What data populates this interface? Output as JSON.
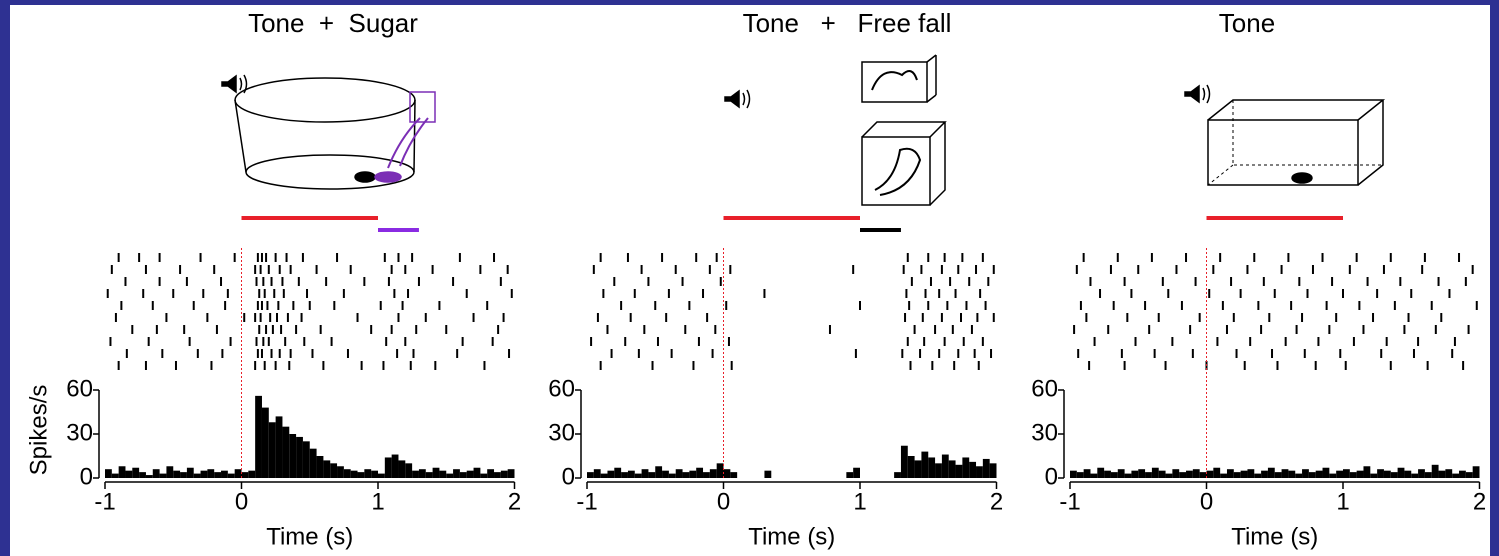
{
  "chart_data": [
    {
      "type": "histogram",
      "title": "Tone  +  Sugar",
      "xlabel": "Time (s)",
      "ylabel": "Spikes/s",
      "color": "#000000",
      "xlim": [
        -1,
        2
      ],
      "ylim": [
        0,
        60
      ],
      "xticks": [
        -1,
        0,
        1,
        2
      ],
      "yticks": [
        0,
        30,
        60
      ],
      "bins": [
        -1,
        -0.95,
        -0.9,
        -0.85,
        -0.8,
        -0.75,
        -0.7,
        -0.65,
        -0.6,
        -0.55,
        -0.5,
        -0.45,
        -0.4,
        -0.35,
        -0.3,
        -0.25,
        -0.2,
        -0.15,
        -0.1,
        -0.05,
        0,
        0.05,
        0.1,
        0.15,
        0.2,
        0.25,
        0.3,
        0.35,
        0.4,
        0.45,
        0.5,
        0.55,
        0.6,
        0.65,
        0.7,
        0.75,
        0.8,
        0.85,
        0.9,
        0.95,
        1,
        1.05,
        1.1,
        1.15,
        1.2,
        1.25,
        1.3,
        1.35,
        1.4,
        1.45,
        1.5,
        1.55,
        1.6,
        1.65,
        1.7,
        1.75,
        1.8,
        1.85,
        1.9,
        1.95,
        2
      ],
      "values": [
        6,
        3,
        8,
        5,
        7,
        4,
        2,
        6,
        3,
        8,
        5,
        4,
        7,
        3,
        5,
        6,
        4,
        5,
        3,
        6,
        4,
        5,
        56,
        48,
        38,
        42,
        35,
        30,
        28,
        25,
        20,
        15,
        12,
        10,
        8,
        6,
        5,
        4,
        6,
        5,
        3,
        14,
        16,
        12,
        10,
        5,
        6,
        4,
        7,
        5,
        3,
        6,
        4,
        5,
        7,
        3,
        6,
        4,
        5,
        6
      ],
      "event_line": {
        "x": 0,
        "color": "#e8202a"
      },
      "stimuli": [
        {
          "start": 0,
          "end": 1,
          "color": "#e8202a"
        },
        {
          "start": 1,
          "end": 1.3,
          "color": "#8a2be2"
        }
      ],
      "raster": [
        [
          -0.9,
          -0.75,
          -0.6,
          -0.3,
          -0.05,
          0.12,
          0.15,
          0.18,
          0.25,
          0.33,
          0.45,
          0.7,
          1.05,
          1.15,
          1.25,
          1.6,
          1.85
        ],
        [
          -0.95,
          -0.7,
          -0.45,
          -0.2,
          0.1,
          0.14,
          0.2,
          0.28,
          0.36,
          0.55,
          0.8,
          1.1,
          1.2,
          1.4,
          1.75,
          1.95
        ],
        [
          -0.85,
          -0.6,
          -0.4,
          -0.15,
          0.11,
          0.16,
          0.22,
          0.3,
          0.42,
          0.62,
          0.9,
          1.08,
          1.3,
          1.55,
          1.9
        ],
        [
          -0.98,
          -0.72,
          -0.5,
          -0.28,
          -0.1,
          0.13,
          0.17,
          0.24,
          0.31,
          0.48,
          0.75,
          1.12,
          1.22,
          1.65,
          1.98
        ],
        [
          -0.88,
          -0.65,
          -0.35,
          -0.12,
          0.12,
          0.15,
          0.19,
          0.27,
          0.38,
          0.5,
          0.68,
          1.02,
          1.18,
          1.45,
          1.8
        ],
        [
          -0.92,
          -0.55,
          -0.25,
          0.02,
          0.1,
          0.14,
          0.21,
          0.26,
          0.34,
          0.44,
          0.85,
          1.15,
          1.35,
          1.7,
          1.92
        ],
        [
          -0.8,
          -0.62,
          -0.42,
          -0.18,
          0.13,
          0.18,
          0.23,
          0.29,
          0.4,
          0.58,
          0.95,
          1.1,
          1.28,
          1.5,
          1.88
        ],
        [
          -0.96,
          -0.68,
          -0.38,
          -0.08,
          0.11,
          0.16,
          0.2,
          0.32,
          0.46,
          0.66,
          1.06,
          1.2,
          1.62,
          1.84
        ],
        [
          -0.84,
          -0.58,
          -0.32,
          -0.14,
          0.12,
          0.15,
          0.22,
          0.28,
          0.36,
          0.52,
          0.78,
          1.14,
          1.26,
          1.58,
          1.96
        ],
        [
          -0.9,
          -0.7,
          -0.48,
          -0.22,
          0.1,
          0.17,
          0.25,
          0.35,
          0.6,
          0.88,
          1.04,
          1.24,
          1.42,
          1.78
        ]
      ]
    },
    {
      "type": "histogram",
      "title": "Tone   +   Free fall",
      "xlabel": "Time (s)",
      "color": "#000000",
      "xlim": [
        -1,
        2
      ],
      "ylim": [
        0,
        60
      ],
      "xticks": [
        -1,
        0,
        1,
        2
      ],
      "yticks": [
        0,
        30,
        60
      ],
      "bins": [
        -1,
        -0.95,
        -0.9,
        -0.85,
        -0.8,
        -0.75,
        -0.7,
        -0.65,
        -0.6,
        -0.55,
        -0.5,
        -0.45,
        -0.4,
        -0.35,
        -0.3,
        -0.25,
        -0.2,
        -0.15,
        -0.1,
        -0.05,
        0,
        0.05,
        0.1,
        0.15,
        0.2,
        0.25,
        0.3,
        0.35,
        0.4,
        0.45,
        0.5,
        0.55,
        0.6,
        0.65,
        0.7,
        0.75,
        0.8,
        0.85,
        0.9,
        0.95,
        1,
        1.05,
        1.1,
        1.15,
        1.2,
        1.25,
        1.3,
        1.35,
        1.4,
        1.45,
        1.5,
        1.55,
        1.6,
        1.65,
        1.7,
        1.75,
        1.8,
        1.85,
        1.9,
        1.95,
        2
      ],
      "values": [
        4,
        6,
        3,
        5,
        7,
        4,
        5,
        3,
        6,
        4,
        8,
        5,
        3,
        6,
        4,
        5,
        7,
        4,
        6,
        10,
        6,
        4,
        0,
        0,
        0,
        0,
        5,
        0,
        0,
        0,
        0,
        0,
        0,
        0,
        0,
        0,
        0,
        0,
        4,
        7,
        0,
        0,
        0,
        0,
        0,
        4,
        22,
        15,
        12,
        18,
        14,
        10,
        16,
        12,
        9,
        14,
        11,
        8,
        13,
        10
      ],
      "event_line": {
        "x": 0,
        "color": "#e8202a"
      },
      "stimuli": [
        {
          "start": 0,
          "end": 1,
          "color": "#e8202a"
        },
        {
          "start": 1,
          "end": 1.3,
          "color": "#000000"
        }
      ],
      "raster": [
        [
          -0.9,
          -0.7,
          -0.45,
          -0.2,
          -0.05,
          1.35,
          1.5,
          1.62,
          1.75,
          1.9
        ],
        [
          -0.95,
          -0.6,
          -0.35,
          -0.1,
          0.05,
          0.95,
          1.32,
          1.45,
          1.6,
          1.72,
          1.85,
          1.98
        ],
        [
          -0.8,
          -0.55,
          -0.3,
          -0.02,
          1.38,
          1.52,
          1.66,
          1.8,
          1.94
        ],
        [
          -0.88,
          -0.65,
          -0.4,
          -0.15,
          0.3,
          1.34,
          1.48,
          1.58,
          1.7,
          1.88
        ],
        [
          -0.75,
          -0.5,
          -0.25,
          0.02,
          1.0,
          1.36,
          1.5,
          1.64,
          1.78,
          1.92
        ],
        [
          -0.92,
          -0.68,
          -0.42,
          -0.12,
          1.33,
          1.46,
          1.6,
          1.74,
          1.86,
          1.98
        ],
        [
          -0.85,
          -0.58,
          -0.28,
          -0.06,
          0.78,
          1.4,
          1.55,
          1.68,
          1.82
        ],
        [
          -0.97,
          -0.72,
          -0.48,
          -0.18,
          0.04,
          1.35,
          1.47,
          1.62,
          1.76,
          1.9
        ],
        [
          -0.82,
          -0.62,
          -0.38,
          -0.08,
          0.97,
          1.31,
          1.44,
          1.58,
          1.72,
          1.84,
          1.96
        ],
        [
          -0.9,
          -0.52,
          -0.22,
          0.06,
          1.37,
          1.53,
          1.69,
          1.87
        ]
      ]
    },
    {
      "type": "histogram",
      "title": "Tone",
      "xlabel": "Time (s)",
      "color": "#000000",
      "xlim": [
        -1,
        2
      ],
      "ylim": [
        0,
        60
      ],
      "xticks": [
        -1,
        0,
        1,
        2
      ],
      "yticks": [
        0,
        30,
        60
      ],
      "bins": [
        -1,
        -0.95,
        -0.9,
        -0.85,
        -0.8,
        -0.75,
        -0.7,
        -0.65,
        -0.6,
        -0.55,
        -0.5,
        -0.45,
        -0.4,
        -0.35,
        -0.3,
        -0.25,
        -0.2,
        -0.15,
        -0.1,
        -0.05,
        0,
        0.05,
        0.1,
        0.15,
        0.2,
        0.25,
        0.3,
        0.35,
        0.4,
        0.45,
        0.5,
        0.55,
        0.6,
        0.65,
        0.7,
        0.75,
        0.8,
        0.85,
        0.9,
        0.95,
        1,
        1.05,
        1.1,
        1.15,
        1.2,
        1.25,
        1.3,
        1.35,
        1.4,
        1.45,
        1.5,
        1.55,
        1.6,
        1.65,
        1.7,
        1.75,
        1.8,
        1.85,
        1.9,
        1.95,
        2
      ],
      "values": [
        5,
        4,
        6,
        3,
        7,
        5,
        4,
        6,
        3,
        5,
        6,
        4,
        7,
        5,
        3,
        6,
        4,
        5,
        6,
        4,
        5,
        7,
        3,
        6,
        4,
        5,
        6,
        3,
        5,
        7,
        4,
        6,
        5,
        3,
        6,
        4,
        5,
        7,
        3,
        5,
        6,
        4,
        5,
        8,
        3,
        6,
        5,
        4,
        7,
        5,
        3,
        6,
        4,
        9,
        5,
        6,
        3,
        5,
        4,
        8
      ],
      "event_line": {
        "x": 0,
        "color": "#e8202a"
      },
      "stimuli": [
        {
          "start": 0,
          "end": 1,
          "color": "#e8202a"
        }
      ],
      "raster": [
        [
          -0.9,
          -0.65,
          -0.4,
          -0.15,
          0.1,
          0.35,
          0.6,
          0.85,
          1.1,
          1.35,
          1.6,
          1.85
        ],
        [
          -0.95,
          -0.7,
          -0.5,
          -0.22,
          0.05,
          0.3,
          0.55,
          0.78,
          1.05,
          1.3,
          1.58,
          1.95
        ],
        [
          -0.85,
          -0.6,
          -0.32,
          -0.08,
          0.18,
          0.42,
          0.68,
          0.92,
          1.18,
          1.42,
          1.7,
          1.9
        ],
        [
          -0.78,
          -0.55,
          -0.28,
          0.02,
          0.25,
          0.5,
          0.74,
          1.0,
          1.25,
          1.5,
          1.78
        ],
        [
          -0.92,
          -0.68,
          -0.45,
          -0.18,
          0.12,
          0.38,
          0.62,
          0.88,
          1.12,
          1.38,
          1.65,
          1.98
        ],
        [
          -0.88,
          -0.58,
          -0.35,
          -0.05,
          0.2,
          0.46,
          0.7,
          0.95,
          1.22,
          1.48,
          1.72
        ],
        [
          -0.97,
          -0.72,
          -0.42,
          -0.12,
          0.15,
          0.4,
          0.66,
          0.9,
          1.15,
          1.45,
          1.68,
          1.92
        ],
        [
          -0.82,
          -0.52,
          -0.25,
          0.08,
          0.32,
          0.58,
          0.82,
          1.08,
          1.32,
          1.55,
          1.82
        ],
        [
          -0.94,
          -0.62,
          -0.38,
          -0.1,
          0.22,
          0.48,
          0.72,
          0.98,
          1.28,
          1.52,
          1.8
        ],
        [
          -0.86,
          -0.6,
          -0.3,
          0.0,
          0.28,
          0.52,
          0.8,
          1.02,
          1.35,
          1.62,
          1.88
        ]
      ]
    }
  ]
}
